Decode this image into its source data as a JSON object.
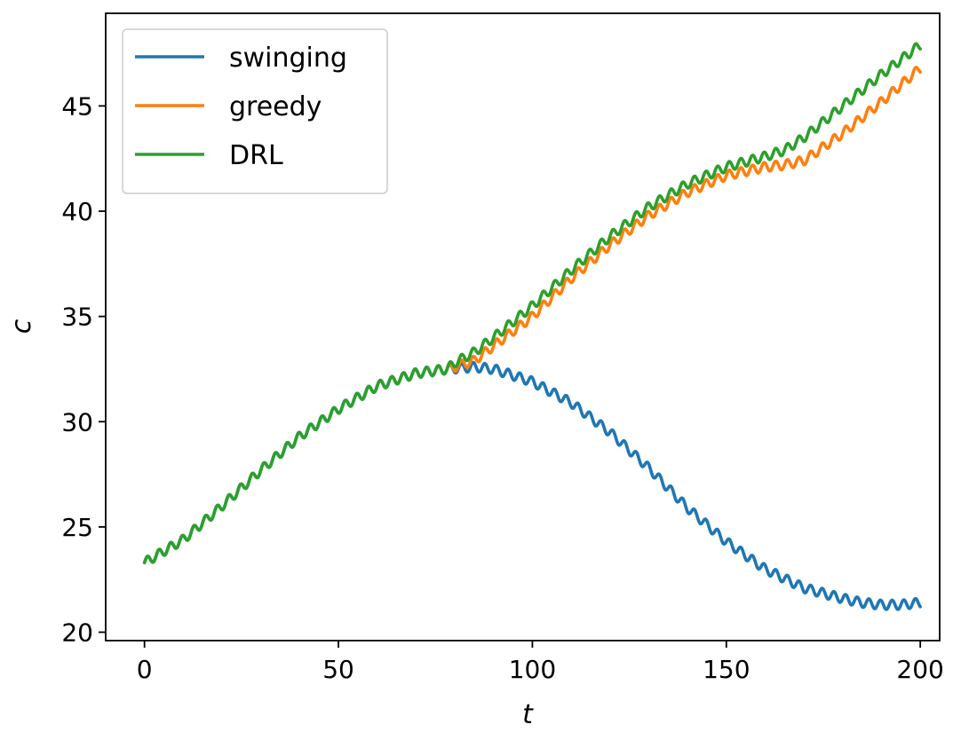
{
  "chart_data": {
    "type": "line",
    "title": "",
    "xlabel": "t",
    "ylabel": "c",
    "xlim": [
      -10,
      205
    ],
    "ylim": [
      19.6,
      49.4
    ],
    "xticks": [
      0,
      50,
      100,
      150,
      200
    ],
    "yticks": [
      20,
      25,
      30,
      35,
      40,
      45
    ],
    "grid": false,
    "legend_position": "top-left",
    "oscillation": {
      "period": 3,
      "amplitude": 0.22
    },
    "series": [
      {
        "name": "swinging",
        "color": "#1f77b4",
        "x": [
          0,
          10,
          20,
          30,
          40,
          50,
          60,
          70,
          78,
          85,
          90,
          100,
          110,
          120,
          130,
          140,
          150,
          160,
          170,
          180,
          185,
          190,
          195,
          200
        ],
        "y": [
          23.3,
          24.4,
          26.0,
          27.7,
          29.3,
          30.6,
          31.7,
          32.3,
          32.5,
          32.6,
          32.5,
          31.9,
          30.9,
          29.5,
          27.8,
          25.9,
          24.3,
          23.0,
          22.1,
          21.6,
          21.4,
          21.3,
          21.3,
          21.4
        ]
      },
      {
        "name": "greedy",
        "color": "#ff7f0e",
        "x": [
          78,
          80,
          85,
          90,
          100,
          110,
          120,
          130,
          140,
          150,
          160,
          165,
          170,
          180,
          190,
          200
        ],
        "y": [
          32.5,
          32.6,
          32.9,
          33.6,
          35.0,
          36.8,
          38.4,
          39.8,
          40.9,
          41.7,
          42.1,
          42.2,
          42.4,
          43.7,
          45.2,
          46.8
        ]
      },
      {
        "name": "DRL",
        "color": "#2ca02c",
        "x": [
          0,
          10,
          20,
          30,
          40,
          50,
          60,
          70,
          78,
          80,
          85,
          90,
          100,
          110,
          120,
          130,
          140,
          150,
          160,
          165,
          170,
          180,
          190,
          200
        ],
        "y": [
          23.3,
          24.4,
          26.0,
          27.7,
          29.3,
          30.6,
          31.7,
          32.3,
          32.5,
          32.8,
          33.3,
          34.0,
          35.5,
          37.2,
          38.8,
          40.2,
          41.3,
          42.1,
          42.6,
          42.9,
          43.5,
          45.0,
          46.5,
          47.9
        ]
      }
    ]
  }
}
